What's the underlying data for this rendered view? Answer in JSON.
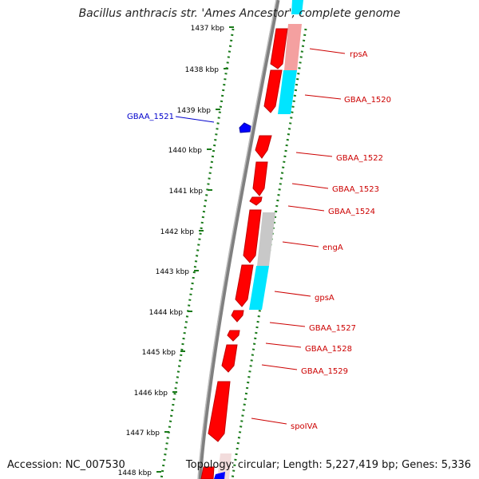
{
  "title": "Bacillus anthracis str. 'Ames Ancestor', complete genome",
  "accession": "Accession: NC_007530",
  "topology": "Topology: circular; Length: 5,227,419 bp; Genes: 5,336",
  "colors": {
    "gene": "#ff0000",
    "gene_dark": "#c00000",
    "backbone": "#808080",
    "tick": "#1a7a1a",
    "cds_category_pink": "#f4a0a0",
    "cds_category_cyan": "#00e5ff",
    "cds_category_grey": "#c8c8c8",
    "reverse_gene": "#0000ff",
    "label_forward": "#cc0000",
    "label_reverse": "#0000cc"
  },
  "ticks": [
    {
      "label": "1437 kbp"
    },
    {
      "label": "1438 kbp"
    },
    {
      "label": "1439 kbp"
    },
    {
      "label": "1440 kbp"
    },
    {
      "label": "1441 kbp"
    },
    {
      "label": "1442 kbp"
    },
    {
      "label": "1443 kbp"
    },
    {
      "label": "1444 kbp"
    },
    {
      "label": "1445 kbp"
    },
    {
      "label": "1446 kbp"
    },
    {
      "label": "1447 kbp"
    },
    {
      "label": "1448 kbp"
    }
  ],
  "gene_labels": [
    {
      "name": "rpsA",
      "strand": "forward"
    },
    {
      "name": "GBAA_1520",
      "strand": "forward"
    },
    {
      "name": "GBAA_1521",
      "strand": "reverse"
    },
    {
      "name": "GBAA_1522",
      "strand": "forward"
    },
    {
      "name": "GBAA_1523",
      "strand": "forward"
    },
    {
      "name": "GBAA_1524",
      "strand": "forward"
    },
    {
      "name": "engA",
      "strand": "forward"
    },
    {
      "name": "gpsA",
      "strand": "forward"
    },
    {
      "name": "GBAA_1527",
      "strand": "forward"
    },
    {
      "name": "GBAA_1528",
      "strand": "forward"
    },
    {
      "name": "GBAA_1529",
      "strand": "forward"
    },
    {
      "name": "spoIVA",
      "strand": "forward"
    }
  ]
}
